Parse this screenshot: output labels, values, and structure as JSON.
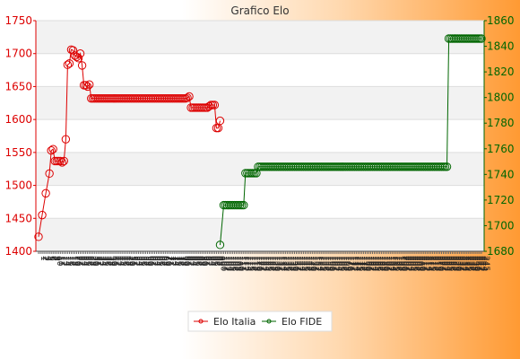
{
  "chart_data": {
    "type": "line",
    "title": "Grafico Elo",
    "left_axis": {
      "ylim": [
        1400,
        1750
      ],
      "ticks": [
        1400,
        1450,
        1500,
        1550,
        1600,
        1650,
        1700,
        1750
      ],
      "color": "#dd0000"
    },
    "right_axis": {
      "ylim": [
        1680,
        1860
      ],
      "ticks": [
        1680,
        1700,
        1720,
        1740,
        1760,
        1780,
        1800,
        1820,
        1840,
        1860
      ],
      "color": "#006600"
    },
    "x_tick_labels": [
      "1",
      "2",
      "3",
      "4",
      "5",
      "6",
      "7",
      "8",
      "9",
      "10",
      "11",
      "12",
      "13",
      "14",
      "15",
      "16",
      "17",
      "18",
      "19",
      "20",
      "21",
      "22",
      "23",
      "24",
      "25",
      "26",
      "27",
      "28",
      "29",
      "30",
      "31",
      "32",
      "33",
      "34",
      "35",
      "36",
      "37",
      "38",
      "39",
      "40",
      "41",
      "42",
      "43",
      "44",
      "45",
      "46",
      "47",
      "48",
      "49",
      "50",
      "51",
      "52",
      "53",
      "54",
      "55",
      "56",
      "57",
      "58",
      "59",
      "60",
      "61",
      "62",
      "63",
      "64",
      "65",
      "66",
      "67",
      "68",
      "69",
      "70",
      "71",
      "72",
      "73",
      "74",
      "75",
      "76",
      "77",
      "78",
      "79",
      "80",
      "81",
      "82",
      "83",
      "84",
      "85",
      "86",
      "87",
      "88",
      "89",
      "90",
      "91",
      "92",
      "93",
      "94",
      "95",
      "96",
      "97",
      "98",
      "99",
      "100",
      "101",
      "102",
      "103",
      "104",
      "105",
      "106",
      "107",
      "108",
      "109",
      "110",
      "111",
      "112",
      "113",
      "114",
      "115",
      "116",
      "117",
      "118",
      "119",
      "120",
      "121",
      "122",
      "123",
      "124",
      "125",
      "126",
      "127",
      "128",
      "129",
      "130",
      "131",
      "132",
      "133",
      "134",
      "135",
      "136",
      "137",
      "138",
      "139",
      "140",
      "141",
      "142",
      "143",
      "144",
      "145",
      "146",
      "147",
      "148",
      "149",
      "150",
      "151",
      "152",
      "153",
      "154",
      "155",
      "156",
      "157",
      "158",
      "159",
      "160",
      "161",
      "162",
      "163",
      "164",
      "165",
      "166",
      "167",
      "168",
      "169",
      "170",
      "171",
      "172",
      "173",
      "174",
      "175",
      "176",
      "177",
      "178",
      "179",
      "180",
      "181",
      "182",
      "183",
      "184",
      "185",
      "186",
      "187",
      "188",
      "189",
      "190",
      "191",
      "192",
      "193",
      "194",
      "195",
      "196",
      "197",
      "198",
      "199",
      "200",
      "201",
      "202",
      "203",
      "204",
      "205",
      "206",
      "207",
      "208",
      "209",
      "210",
      "211",
      "212",
      "213",
      "214",
      "215",
      "216",
      "217",
      "218",
      "219",
      "220",
      "221",
      "222",
      "223",
      "224",
      "225",
      "226",
      "227",
      "228",
      "229",
      "230",
      "231",
      "232",
      "233",
      "234",
      "235",
      "236",
      "237",
      "238",
      "239",
      "240",
      "241",
      "242",
      "243",
      "244",
      "245"
    ],
    "legend_position": "bottom",
    "series": [
      {
        "name": "Elo Italia",
        "axis": "left",
        "color": "#dd0000",
        "points": [
          [
            1,
            1422
          ],
          [
            3,
            1455
          ],
          [
            5,
            1488
          ],
          [
            7,
            1518
          ],
          [
            8,
            1553
          ],
          [
            9,
            1555
          ],
          [
            10,
            1537
          ],
          [
            11,
            1537
          ],
          [
            12,
            1537
          ],
          [
            13,
            1537
          ],
          [
            14,
            1535
          ],
          [
            15,
            1537
          ],
          [
            16,
            1570
          ],
          [
            17,
            1683
          ],
          [
            18,
            1685
          ],
          [
            19,
            1706
          ],
          [
            20,
            1705
          ],
          [
            21,
            1697
          ],
          [
            22,
            1695
          ],
          [
            23,
            1693
          ],
          [
            24,
            1700
          ],
          [
            25,
            1682
          ],
          [
            26,
            1652
          ],
          [
            27,
            1652
          ],
          [
            28,
            1650
          ],
          [
            29,
            1653
          ],
          [
            30,
            1632
          ],
          [
            31,
            1632
          ],
          [
            32,
            1632
          ],
          [
            33,
            1632
          ],
          [
            34,
            1632
          ],
          [
            35,
            1632
          ],
          [
            36,
            1632
          ],
          [
            37,
            1632
          ],
          [
            38,
            1632
          ],
          [
            39,
            1632
          ],
          [
            40,
            1632
          ],
          [
            41,
            1632
          ],
          [
            42,
            1632
          ],
          [
            43,
            1632
          ],
          [
            44,
            1632
          ],
          [
            45,
            1632
          ],
          [
            46,
            1632
          ],
          [
            47,
            1632
          ],
          [
            48,
            1632
          ],
          [
            49,
            1632
          ],
          [
            50,
            1632
          ],
          [
            51,
            1632
          ],
          [
            52,
            1632
          ],
          [
            53,
            1632
          ],
          [
            54,
            1632
          ],
          [
            55,
            1632
          ],
          [
            56,
            1632
          ],
          [
            57,
            1632
          ],
          [
            58,
            1632
          ],
          [
            59,
            1632
          ],
          [
            60,
            1632
          ],
          [
            61,
            1632
          ],
          [
            62,
            1632
          ],
          [
            63,
            1632
          ],
          [
            64,
            1632
          ],
          [
            65,
            1632
          ],
          [
            66,
            1632
          ],
          [
            67,
            1632
          ],
          [
            68,
            1632
          ],
          [
            69,
            1632
          ],
          [
            70,
            1632
          ],
          [
            71,
            1632
          ],
          [
            72,
            1632
          ],
          [
            73,
            1632
          ],
          [
            74,
            1632
          ],
          [
            75,
            1632
          ],
          [
            76,
            1632
          ],
          [
            77,
            1632
          ],
          [
            78,
            1632
          ],
          [
            79,
            1632
          ],
          [
            80,
            1632
          ],
          [
            81,
            1632
          ],
          [
            82,
            1632
          ],
          [
            83,
            1633
          ],
          [
            84,
            1635
          ],
          [
            85,
            1618
          ],
          [
            86,
            1618
          ],
          [
            87,
            1618
          ],
          [
            88,
            1618
          ],
          [
            89,
            1618
          ],
          [
            90,
            1618
          ],
          [
            91,
            1618
          ],
          [
            92,
            1618
          ],
          [
            93,
            1618
          ],
          [
            94,
            1618
          ],
          [
            95,
            1620
          ],
          [
            96,
            1622
          ],
          [
            97,
            1622
          ],
          [
            98,
            1622
          ],
          [
            99,
            1587
          ],
          [
            100,
            1587
          ],
          [
            101,
            1598
          ]
        ]
      },
      {
        "name": "Elo FIDE",
        "axis": "right",
        "color": "#006600",
        "points": [
          [
            101,
            1685
          ],
          [
            103,
            1716
          ],
          [
            104,
            1716
          ],
          [
            105,
            1716
          ],
          [
            106,
            1716
          ],
          [
            107,
            1716
          ],
          [
            108,
            1716
          ],
          [
            109,
            1716
          ],
          [
            110,
            1716
          ],
          [
            111,
            1716
          ],
          [
            112,
            1716
          ],
          [
            113,
            1716
          ],
          [
            114,
            1716
          ],
          [
            115,
            1741
          ],
          [
            116,
            1741
          ],
          [
            117,
            1741
          ],
          [
            118,
            1741
          ],
          [
            119,
            1741
          ],
          [
            120,
            1741
          ],
          [
            121,
            1741
          ],
          [
            122,
            1746
          ],
          [
            123,
            1746
          ],
          [
            124,
            1746
          ],
          [
            125,
            1746
          ],
          [
            126,
            1746
          ],
          [
            127,
            1746
          ],
          [
            128,
            1746
          ],
          [
            129,
            1746
          ],
          [
            130,
            1746
          ],
          [
            131,
            1746
          ],
          [
            132,
            1746
          ],
          [
            133,
            1746
          ],
          [
            134,
            1746
          ],
          [
            135,
            1746
          ],
          [
            136,
            1746
          ],
          [
            137,
            1746
          ],
          [
            138,
            1746
          ],
          [
            139,
            1746
          ],
          [
            140,
            1746
          ],
          [
            141,
            1746
          ],
          [
            142,
            1746
          ],
          [
            143,
            1746
          ],
          [
            144,
            1746
          ],
          [
            145,
            1746
          ],
          [
            146,
            1746
          ],
          [
            147,
            1746
          ],
          [
            148,
            1746
          ],
          [
            149,
            1746
          ],
          [
            150,
            1746
          ],
          [
            151,
            1746
          ],
          [
            152,
            1746
          ],
          [
            153,
            1746
          ],
          [
            154,
            1746
          ],
          [
            155,
            1746
          ],
          [
            156,
            1746
          ],
          [
            157,
            1746
          ],
          [
            158,
            1746
          ],
          [
            159,
            1746
          ],
          [
            160,
            1746
          ],
          [
            161,
            1746
          ],
          [
            162,
            1746
          ],
          [
            163,
            1746
          ],
          [
            164,
            1746
          ],
          [
            165,
            1746
          ],
          [
            166,
            1746
          ],
          [
            167,
            1746
          ],
          [
            168,
            1746
          ],
          [
            169,
            1746
          ],
          [
            170,
            1746
          ],
          [
            171,
            1746
          ],
          [
            172,
            1746
          ],
          [
            173,
            1746
          ],
          [
            174,
            1746
          ],
          [
            175,
            1746
          ],
          [
            176,
            1746
          ],
          [
            177,
            1746
          ],
          [
            178,
            1746
          ],
          [
            179,
            1746
          ],
          [
            180,
            1746
          ],
          [
            181,
            1746
          ],
          [
            182,
            1746
          ],
          [
            183,
            1746
          ],
          [
            184,
            1746
          ],
          [
            185,
            1746
          ],
          [
            186,
            1746
          ],
          [
            187,
            1746
          ],
          [
            188,
            1746
          ],
          [
            189,
            1746
          ],
          [
            190,
            1746
          ],
          [
            191,
            1746
          ],
          [
            192,
            1746
          ],
          [
            193,
            1746
          ],
          [
            194,
            1746
          ],
          [
            195,
            1746
          ],
          [
            196,
            1746
          ],
          [
            197,
            1746
          ],
          [
            198,
            1746
          ],
          [
            199,
            1746
          ],
          [
            200,
            1746
          ],
          [
            201,
            1746
          ],
          [
            202,
            1746
          ],
          [
            203,
            1746
          ],
          [
            204,
            1746
          ],
          [
            205,
            1746
          ],
          [
            206,
            1746
          ],
          [
            207,
            1746
          ],
          [
            208,
            1746
          ],
          [
            209,
            1746
          ],
          [
            210,
            1746
          ],
          [
            211,
            1746
          ],
          [
            212,
            1746
          ],
          [
            213,
            1746
          ],
          [
            214,
            1746
          ],
          [
            215,
            1746
          ],
          [
            216,
            1746
          ],
          [
            217,
            1746
          ],
          [
            218,
            1746
          ],
          [
            219,
            1746
          ],
          [
            220,
            1746
          ],
          [
            221,
            1746
          ],
          [
            222,
            1746
          ],
          [
            223,
            1746
          ],
          [
            224,
            1746
          ],
          [
            225,
            1746
          ],
          [
            226,
            1746
          ],
          [
            227,
            1846
          ],
          [
            228,
            1846
          ],
          [
            229,
            1846
          ],
          [
            230,
            1846
          ],
          [
            231,
            1846
          ],
          [
            232,
            1846
          ],
          [
            233,
            1846
          ],
          [
            234,
            1846
          ],
          [
            235,
            1846
          ],
          [
            236,
            1846
          ],
          [
            237,
            1846
          ],
          [
            238,
            1846
          ],
          [
            239,
            1846
          ],
          [
            240,
            1846
          ],
          [
            241,
            1846
          ],
          [
            242,
            1846
          ],
          [
            243,
            1846
          ],
          [
            244,
            1846
          ],
          [
            245,
            1846
          ]
        ]
      }
    ]
  }
}
